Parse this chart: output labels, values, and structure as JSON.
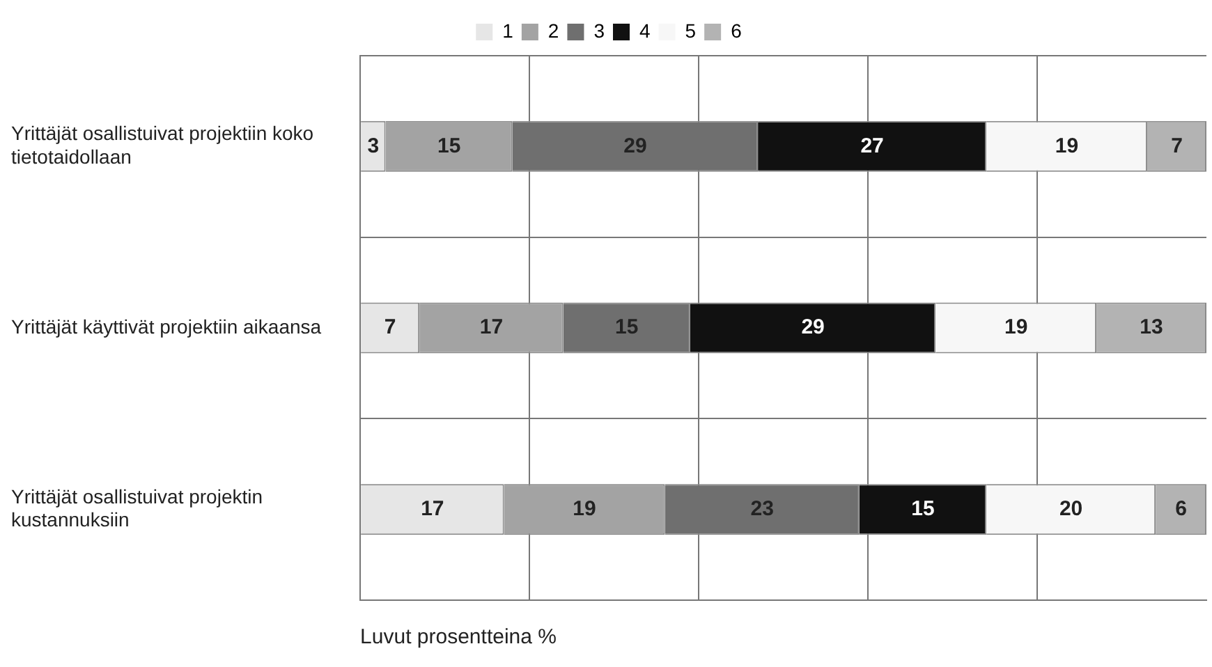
{
  "chart_data": {
    "type": "bar",
    "orientation": "horizontal",
    "stacked": true,
    "categories": [
      "Yrittäjät osallistuivat projektiin koko tietotaidollaan",
      "Yrittäjät käyttivät projektiin aikaansa",
      "Yrittäjät osallistuivat projektin kustannuksiin"
    ],
    "series": [
      {
        "name": "1",
        "color": "#e6e6e6",
        "values": [
          3,
          7,
          17
        ]
      },
      {
        "name": "2",
        "color": "#a3a3a3",
        "values": [
          15,
          17,
          19
        ]
      },
      {
        "name": "3",
        "color": "#6f6f6f",
        "values": [
          29,
          15,
          23
        ]
      },
      {
        "name": "4",
        "color": "#111111",
        "values": [
          27,
          29,
          15
        ]
      },
      {
        "name": "5",
        "color": "#f7f7f7",
        "values": [
          19,
          19,
          20
        ]
      },
      {
        "name": "6",
        "color": "#b3b3b3",
        "values": [
          7,
          13,
          6
        ]
      }
    ],
    "xlim": [
      0,
      100
    ],
    "xticks": [
      {
        "value": 0,
        "label": null
      },
      {
        "value": 20,
        "label": null
      },
      {
        "value": 40,
        "label": null
      },
      {
        "value": 60,
        "label": null
      },
      {
        "value": 80,
        "label": null
      }
    ],
    "xlabel": "Luvut prosentteina %",
    "tick_labels": "y",
    "grid": true,
    "legend": "top",
    "data_labels": true
  }
}
